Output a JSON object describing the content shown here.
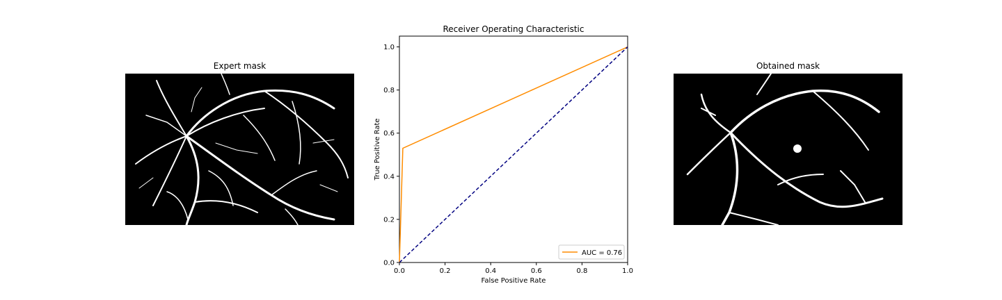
{
  "panels": {
    "left": {
      "title": "Expert mask"
    },
    "right": {
      "title": "Obtained mask"
    }
  },
  "chart_data": {
    "type": "line",
    "title": "Receiver Operating Characteristic",
    "xlabel": "False Positive Rate",
    "ylabel": "True Positive Rate",
    "xlim": [
      0.0,
      1.0
    ],
    "ylim": [
      0.0,
      1.05
    ],
    "xticks": [
      "0.0",
      "0.2",
      "0.4",
      "0.6",
      "0.8",
      "1.0"
    ],
    "yticks": [
      "0.0",
      "0.2",
      "0.4",
      "0.6",
      "0.8",
      "1.0"
    ],
    "grid": false,
    "legend_position": "lower right",
    "series": [
      {
        "name": "AUC = 0.76",
        "color": "#ff8c00",
        "style": "solid",
        "x": [
          0.0,
          0.015,
          1.0
        ],
        "y": [
          0.0,
          0.53,
          1.0
        ]
      },
      {
        "name": "",
        "color": "#000080",
        "style": "dashed",
        "x": [
          0.0,
          1.0
        ],
        "y": [
          0.0,
          1.0
        ]
      }
    ]
  }
}
